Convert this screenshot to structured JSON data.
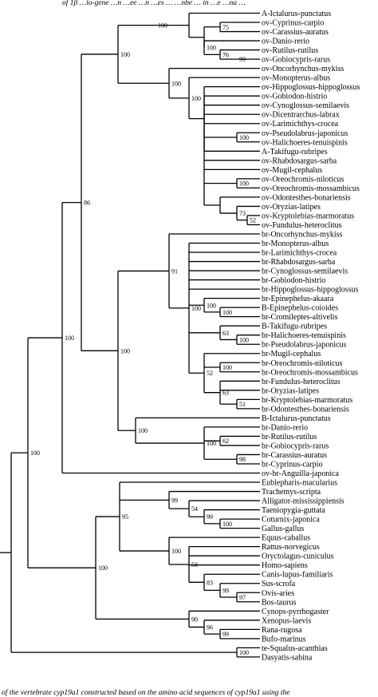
{
  "caption_top": "of 1β …lo-gene …n …ee …n …es … …nbe … in …e …na …",
  "caption_bottom": "of the vertebrate cyp19a1 constructed based on the amino acid sequences of cyp19a1 using the",
  "taxa": [
    "A-Ictalurus-punctatus",
    "ov-Cyprinus-carpio",
    "ov-Carassius-auratus",
    "ov-Danio-rerio",
    "ov-Rutilus-rutilus",
    "ov-Gobiocypris-rarus",
    "ov-Oncorhynchus-mykiss",
    "ov-Monopterus-albus",
    "ov-Hippoglossus-hippoglossus",
    "ov-Gobiodon-histrio",
    "ov-Cynoglossus-semilaevis",
    "ov-Dicentrarchus-labrax",
    "ov-Larimichthys-crocea",
    "ov-Pseudolabrus-japonicus",
    "ov-Halichoeres-tenuispinis",
    "A-Takifugu-rubripes",
    "ov-Rhabdosargus-sarba",
    "ov-Mugil-cephalus",
    "ov-Oreochromis-niloticus",
    "ov-Oreochromis-mossambicus",
    "ov-Odontesthes-bonariensis",
    "ov-Oryzias-latipes",
    "ov-Kryptolebias-marmoratus",
    "ov-Fundulus-heteroclitus",
    "br-Oncorhynchus-mykiss",
    "br-Monopterus-albus",
    "br-Larimichthys-crocea",
    "br-Rhabdosargus-sarba",
    "br-Cynoglossus-semilaevis",
    "br-Gobiodon-histrio",
    "br-Hippoglossus-hippoglossus",
    "br-Epinephelus-akaara",
    "B-Epinephelus-coioides",
    "br-Cromileptes-altivelis",
    "B-Takifugu-rubripes",
    "br-Halichoeres-tenuispinis",
    "br-Pseudolabrus-japonicus",
    "br-Mugil-cephalus",
    "br-Oreochromis-niloticus",
    "br-Oreochromis-mossambicus",
    "br-Fundulus-heteroclitus",
    "br-Oryzias-latipes",
    "br-Kryptolebias-marmoratus",
    "br-Odontesthes-bonariensis",
    "B-Ictalurus-punctatus",
    "br-Danio-rerio",
    "br-Rutilus-rutilus",
    "br-Gobiocypris-rarus",
    "br-Carassius-auratus",
    "br-Cyprinus-carpio",
    "ov-br-Anguilla-japonica",
    "Eublepharis-macularius",
    "Trachemys-scripta",
    "Alligator-mississippiensis",
    "Taeniopygia-guttata",
    "Coturnix-japonica",
    "Gallus-gallus",
    "Equus-caballus",
    "Rattus-norvegicus",
    "Oryctolagus-cuniculus",
    "Homo-sapiens",
    "Canis-lupus-familiaris",
    "Sus-scrofa",
    "Ovis-aries",
    "Bos-taurus",
    "Cynops-pyrrhogaster",
    "Xenopus-laevis",
    "Rana-rugosa",
    "Bufo-marinus",
    "te-Squalus-acanthias",
    "Dasyatis-sabina"
  ],
  "supports": {
    "n_cyp_ov": "100",
    "n_cc_ca": "75",
    "n_dr": "100",
    "n_rr_gr": "76",
    "n_rr_gr2": "99",
    "n_perc_ov": "100",
    "n_perc_ov2": "100",
    "n_pj_ht": "100",
    "n_on_om": "100",
    "n_ob_or": "73",
    "n_km_fh": "52",
    "n_ov_all": "100",
    "n_fish": "86",
    "n_br_perc": "91",
    "n_br_perc2": "100",
    "n_epi": "100",
    "n_epi2": "100",
    "n_taki": "63",
    "n_pj_br": "100",
    "n_mugil": "52",
    "n_on_br": "100",
    "n_fh_or": "63",
    "n_km_ob": "51",
    "n_br_all": "100",
    "n_cyp_br": "100",
    "n_rr_gr_br": "100",
    "n_rr_gr_br2": "62",
    "n_ca_cc": "98",
    "n_actino": "100",
    "n_osteo": "100",
    "n_sauro": "99",
    "n_archo": "54",
    "n_birds": "99",
    "n_cj_gg": "100",
    "n_amniote": "95",
    "n_mammals": "100",
    "n_rn_oc": "58",
    "n_laur": "83",
    "n_artio": "99",
    "n_ov_bt": "97",
    "n_tetra": "100",
    "n_amph": "90",
    "n_anura": "96",
    "n_rana_bufo": "99",
    "n_chondro": "100"
  }
}
